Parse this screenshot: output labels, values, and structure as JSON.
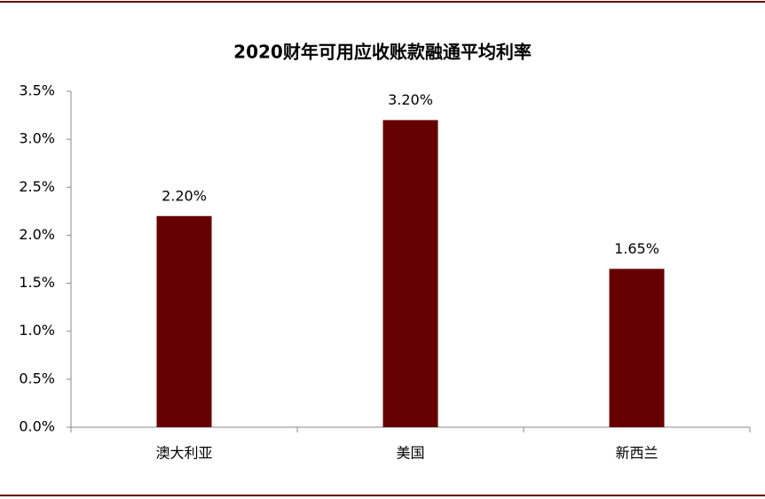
{
  "chart_data": {
    "type": "bar",
    "title": "2020财年可用应收账款融通平均利率",
    "categories": [
      "澳大利亚",
      "美国",
      "新西兰"
    ],
    "values": [
      2.2,
      3.2,
      1.65
    ],
    "value_labels": [
      "2.20%",
      "3.20%",
      "1.65%"
    ],
    "color": "#660000",
    "ylim": [
      0,
      3.5
    ],
    "yticks": [
      {
        "value": 0,
        "label": "0.0%"
      },
      {
        "value": 0.5,
        "label": "0.5%"
      },
      {
        "value": 1,
        "label": "1.0%"
      },
      {
        "value": 1.5,
        "label": "1.5%"
      },
      {
        "value": 2,
        "label": "2.0%"
      },
      {
        "value": 2.5,
        "label": "2.5%"
      },
      {
        "value": 3,
        "label": "3.0%"
      },
      {
        "value": 3.5,
        "label": "3.5%"
      }
    ],
    "grid": false
  }
}
